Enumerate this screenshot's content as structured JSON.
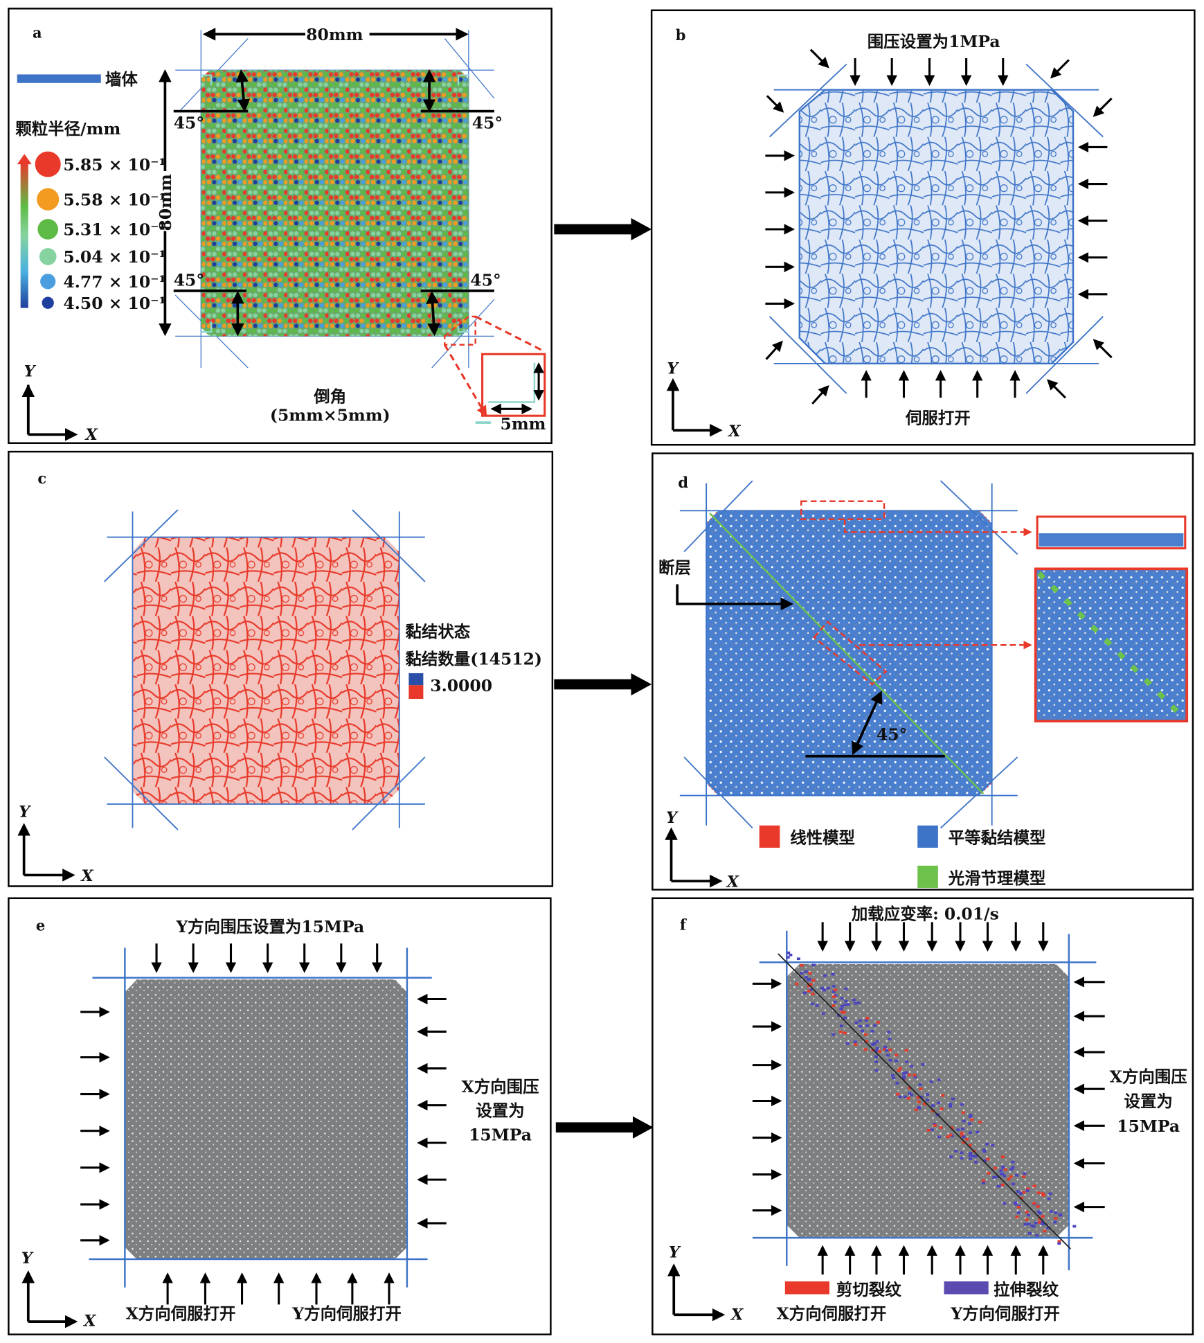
{
  "panels": {
    "a": {
      "label": "a",
      "width_label": "80mm",
      "height_label": "80mm",
      "wall_label": "墙体",
      "radius_title": "颗粒半径/mm",
      "radius_legend": [
        "5.85 × 10⁻¹",
        "5.58 × 10⁻¹",
        "5.31 × 10⁻¹",
        "5.04 × 10⁻¹",
        "4.77 × 10⁻¹",
        "4.50 × 10⁻¹"
      ],
      "radius_colors": [
        "#e8392a",
        "#f39a21",
        "#5dbb45",
        "#86d3a0",
        "#4a9ee0",
        "#1f3f9f"
      ],
      "angle": "45°",
      "chamfer_title": "倒角",
      "chamfer_size": "(5mm×5mm)",
      "chamfer_detail": "5mm"
    },
    "b": {
      "label": "b",
      "top_text": "围压设置为1MPa",
      "bottom_text": "伺服打开"
    },
    "c": {
      "label": "c",
      "bond_state": "黏结状态",
      "bond_count": "黏结数量(14512)",
      "bond_value": "3.0000"
    },
    "d": {
      "label": "d",
      "fault": "断层",
      "angle": "45°",
      "legend": [
        {
          "label": "线性模型",
          "color": "#e8392a"
        },
        {
          "label": "平等黏结模型",
          "color": "#3d74c8"
        },
        {
          "label": "光滑节理模型",
          "color": "#6cc24a"
        }
      ]
    },
    "e": {
      "label": "e",
      "top_text": "Y方向围压设置为15MPa",
      "right_text": [
        "X方向围压",
        "设置为",
        "15MPa"
      ],
      "bottom_left": "X方向伺服打开",
      "bottom_right": "Y方向伺服打开"
    },
    "f": {
      "label": "f",
      "top_text": "加载应变率: 0.01/s",
      "right_text": [
        "X方向围压",
        "设置为",
        "15MPa"
      ],
      "legend": [
        {
          "label": "剪切裂纹",
          "color": "#e8392a"
        },
        {
          "label": "拉伸裂纹",
          "color": "#5b4bb0"
        }
      ],
      "bottom_left": "X方向伺服打开",
      "bottom_right": "Y方向伺服打开"
    }
  },
  "axes": {
    "x": "X",
    "y": "Y"
  },
  "colors": {
    "wall": "#3d74c8",
    "arrow": "#000000",
    "highlight": "#e8392a",
    "particle_gray": "#7d7f80"
  }
}
